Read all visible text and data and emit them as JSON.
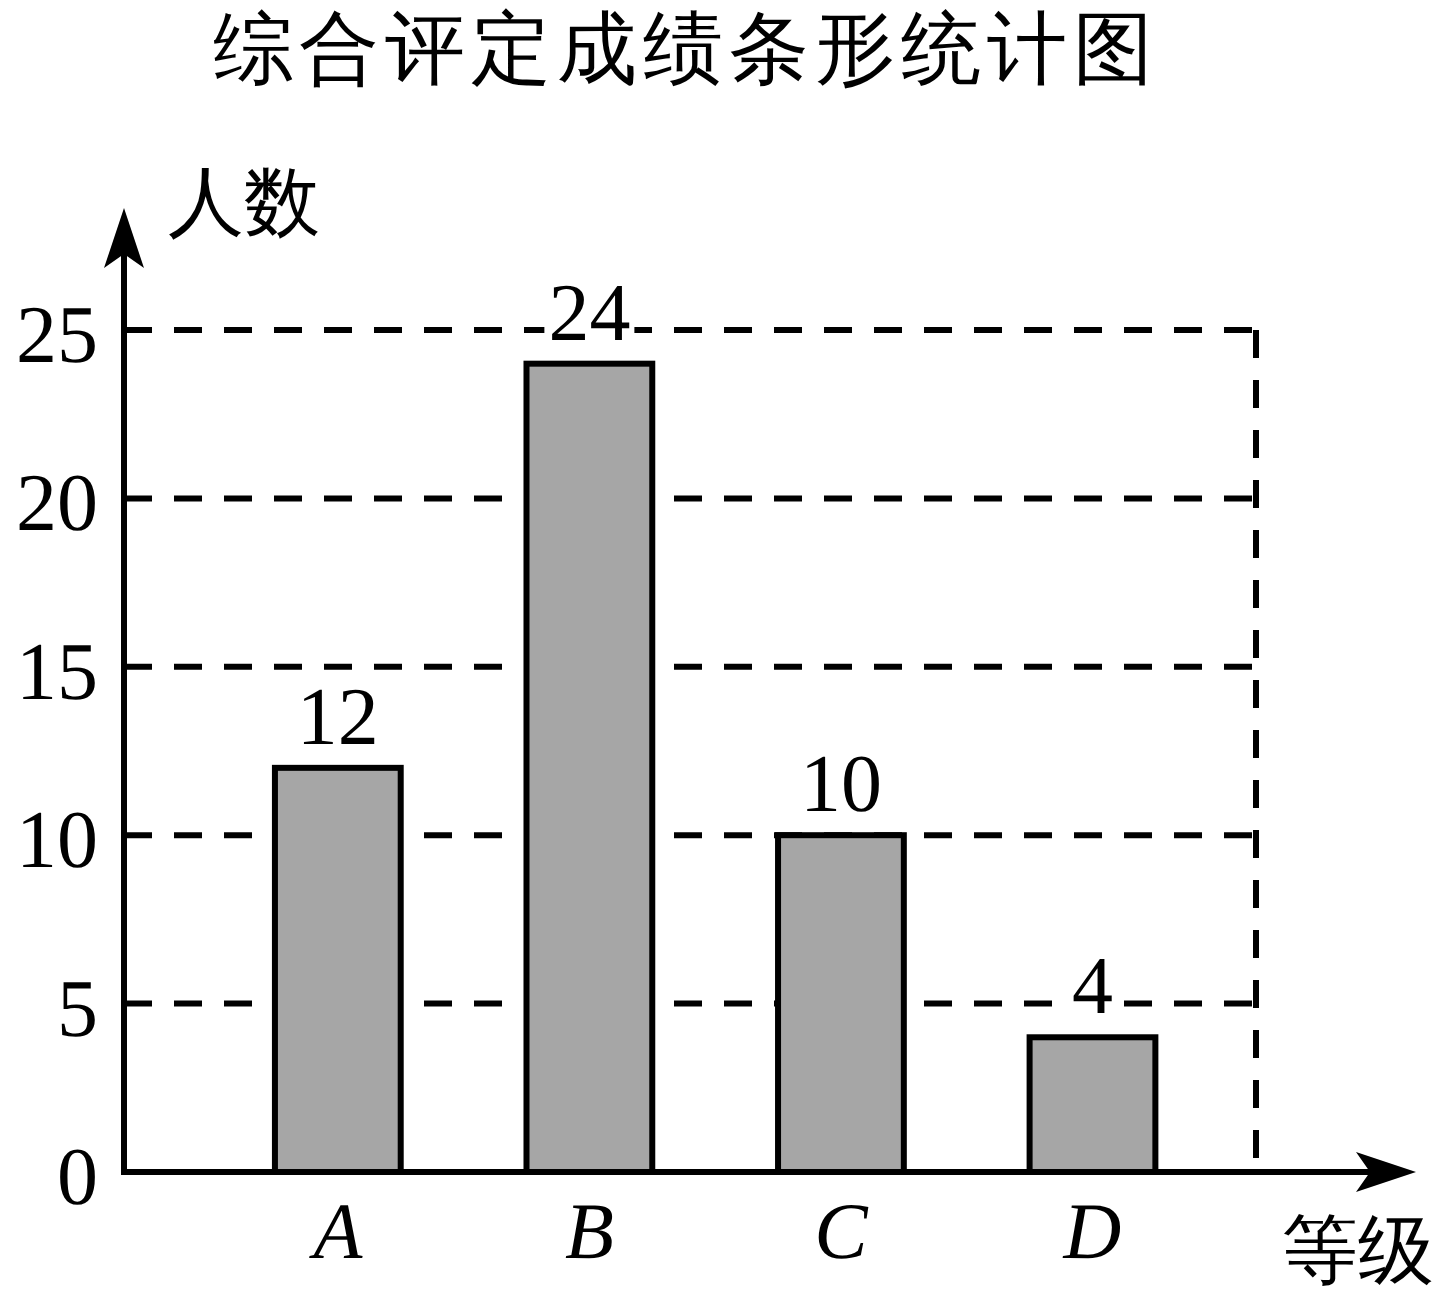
{
  "chart_data": {
    "type": "bar",
    "title": "综合评定成绩条形统计图",
    "xlabel": "等级",
    "ylabel": "人数",
    "categories": [
      "A",
      "B",
      "C",
      "D"
    ],
    "values": [
      12,
      24,
      10,
      4
    ],
    "color": "#a6a6a6",
    "ylim": [
      0,
      25
    ],
    "yticks": [
      0,
      5,
      10,
      15,
      20,
      25
    ],
    "grid": "y",
    "data_labels": true
  }
}
